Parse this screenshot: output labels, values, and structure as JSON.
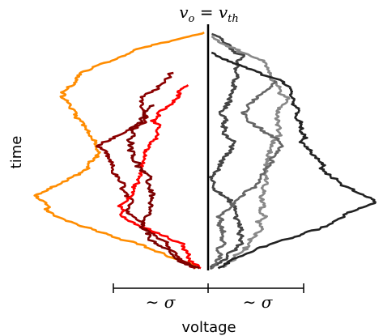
{
  "title": {
    "v": "v",
    "o": "o",
    "eq": " = ",
    "v2": "v",
    "th": "th"
  },
  "ylabel": "time",
  "xlabel": "voltage",
  "sigma_left": "∼ σ",
  "sigma_right": "∼ σ",
  "colors": {
    "threshold": "#000000",
    "warm": [
      "#ff8c00",
      "#8b0000",
      "#ff0000",
      "#7a0000"
    ],
    "gray": [
      "#444444",
      "#888888",
      "#222222",
      "#666666"
    ]
  }
}
